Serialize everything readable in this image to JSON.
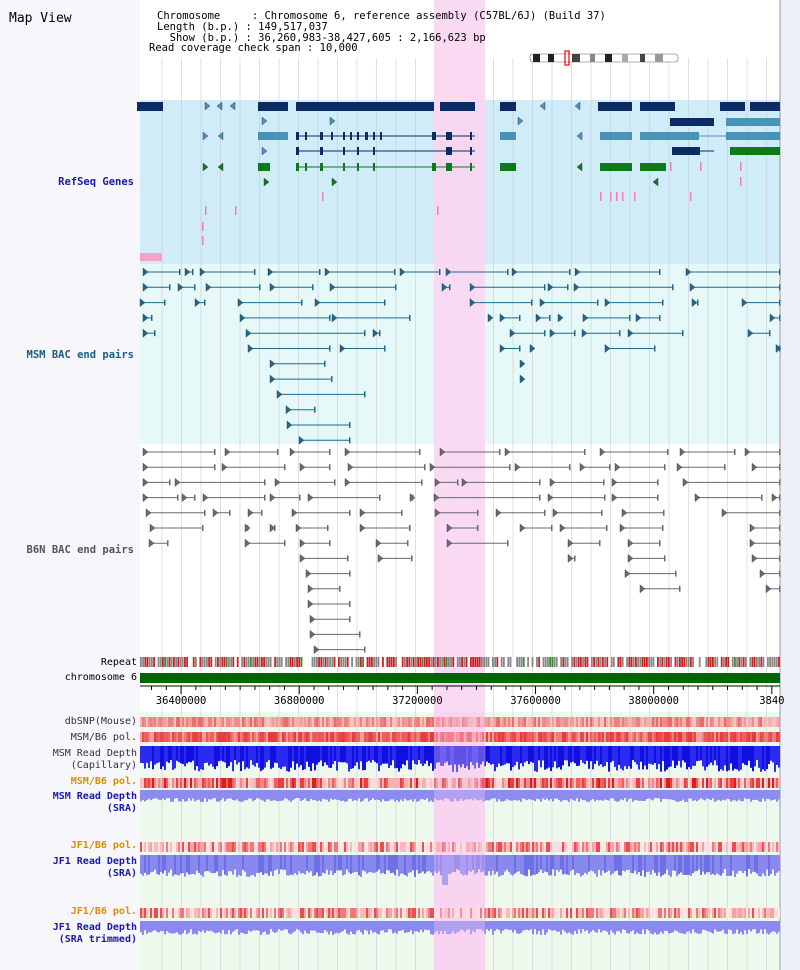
{
  "title": "Map View",
  "info": {
    "chromosome_line": "Chromosome     : Chromosome 6, reference assembly (C57BL/6J) (Build 37)",
    "length_line": "Length (b.p.) : 149,517,037",
    "show_line": "  Show (b.p.) : 36,260,983-38,427,605 : 2,166,623 bp",
    "coverage_line": "Read coverage check span : 10,000"
  },
  "tracks": {
    "refseq": {
      "label": "RefSeq Genes",
      "color": "#1a1aa8"
    },
    "msm_bac": {
      "label": "MSM BAC end pairs",
      "color": "#1a6080"
    },
    "b6n_bac": {
      "label": "B6N BAC end pairs",
      "color": "#555555"
    },
    "repeat": {
      "label": "Repeat"
    },
    "chromosome": {
      "label": "chromosome 6"
    }
  },
  "axis": {
    "start": 36260983,
    "end": 38427605,
    "ticks": [
      "36400000",
      "36800000",
      "37200000",
      "37600000",
      "38000000",
      "3840"
    ]
  },
  "lower_tracks": {
    "dbsnp": {
      "label": "dbSNP(Mouse)"
    },
    "msm_b6_pol": {
      "label": "MSM/B6 pol."
    },
    "msm_read_depth_cap": {
      "label1": "MSM Read Depth",
      "label2": "(Capillary)"
    },
    "msm_b6_pol2": {
      "label": "MSM/B6 pol."
    },
    "msm_read_depth_sra": {
      "label1": "MSM Read Depth",
      "label2": "(SRA)"
    },
    "jf1_b6_pol": {
      "label": "JF1/B6 pol."
    },
    "jf1_read_depth_sra": {
      "label1": "JF1 Read Depth",
      "label2": "(SRA)"
    },
    "jf1_b6_pol2": {
      "label": "JF1/B6 pol."
    },
    "jf1_read_depth_trim": {
      "label1": "JF1 Read Depth",
      "label2": "(SRA trimmed)"
    }
  },
  "colors": {
    "refseq_bg": "#d0ecf8",
    "bac_bg": "#e6f8f8",
    "highlight": "#f9d6f2",
    "chromosome_bar": "#006400",
    "refseq_dark": "#0c2a64",
    "refseq_mid": "#4a93b8",
    "refseq_green": "#0c7a18"
  }
}
